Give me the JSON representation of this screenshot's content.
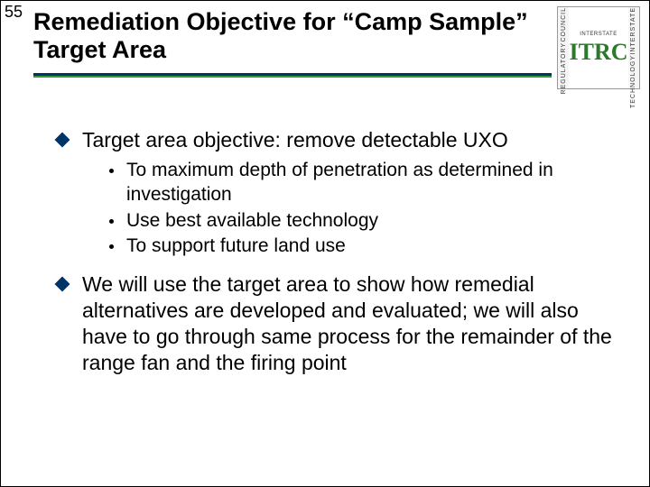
{
  "slide_number": "55",
  "title": "Remediation Objective for “Camp Sample” Target Area",
  "logo": {
    "left_top": "COUNCIL",
    "left_bottom": "REGULATORY",
    "right_top": "INTERSTATE",
    "right_bottom": "TECHNOLOGY",
    "center_label": "INTERSTATE",
    "acronym": "ITRC"
  },
  "bullets": [
    {
      "text": "Target area objective: remove detectable UXO",
      "sub": [
        "To maximum depth of penetration as determined in investigation",
        "Use best available technology",
        "To support future land use"
      ]
    },
    {
      "text": "We will use the target area to show how remedial alternatives are developed and evaluated; we will also have to go through same process for the remainder of the range fan and the firing point",
      "sub": []
    }
  ],
  "colors": {
    "underline_top": "#003366",
    "underline_bottom": "#339933",
    "diamond": "#003366",
    "itrc_green": "#2a7a2a"
  }
}
